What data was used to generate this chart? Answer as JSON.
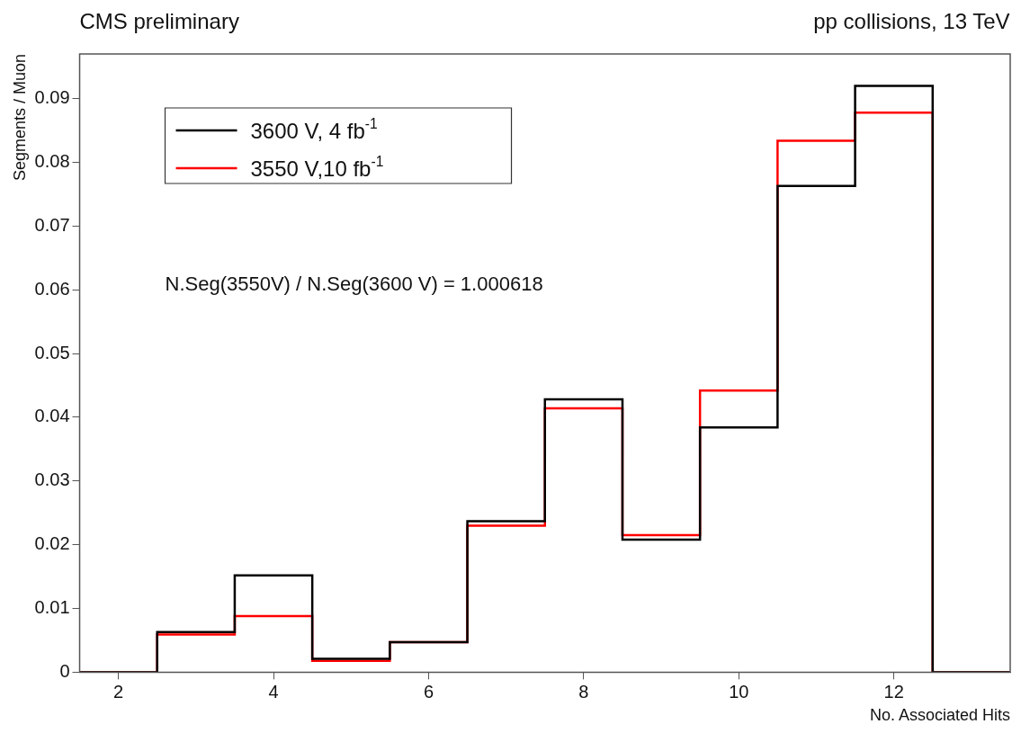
{
  "chart_data": {
    "type": "histogram",
    "title": "CMS preliminary",
    "subtitle": "pp collisions, 13 TeV",
    "xlabel": "No. Associated Hits",
    "ylabel": "Segments / Muon",
    "bins": [
      1.5,
      2.5,
      3.5,
      4.5,
      5.5,
      6.5,
      7.5,
      8.5,
      9.5,
      10.5,
      11.5,
      12.5,
      13.5
    ],
    "series": [
      {
        "name": "3600 V, 4 fb$^{-1}$",
        "color": "#000000",
        "values": [
          0,
          0.0063,
          0.0152,
          0.0021,
          0.0047,
          0.0237,
          0.0428,
          0.0208,
          0.0384,
          0.0763,
          0.092,
          0
        ]
      },
      {
        "name": "3550 V,10 fb$^{-1}$",
        "color": "#ff0000",
        "values": [
          0,
          0.0059,
          0.0088,
          0.0018,
          0.0047,
          0.023,
          0.0414,
          0.0215,
          0.0442,
          0.0834,
          0.0878,
          0
        ]
      }
    ],
    "xlim": [
      1.5,
      13.5
    ],
    "xticks": [
      2,
      4,
      6,
      8,
      10,
      12
    ],
    "ylim": [
      0,
      0.097
    ],
    "yticks": [
      0,
      0.01,
      0.02,
      0.03,
      0.04,
      0.05,
      0.06,
      0.07,
      0.08,
      0.09
    ],
    "annotations": [
      "N.Seg(3550V) / N.Seg(3600 V) = 1.000618"
    ],
    "legend": "top left",
    "grid": false
  }
}
